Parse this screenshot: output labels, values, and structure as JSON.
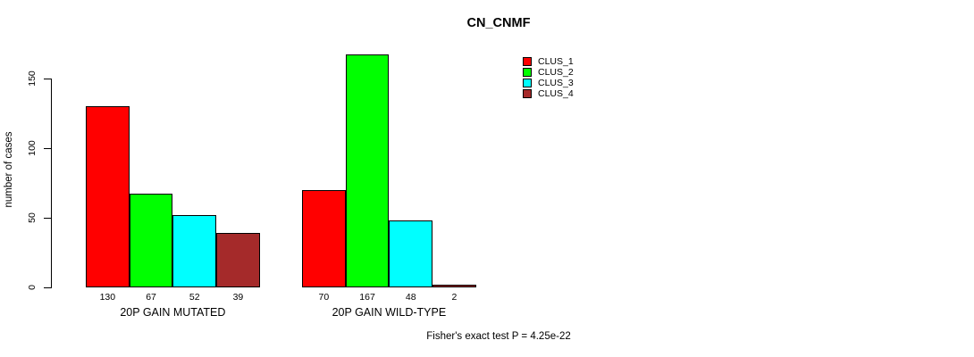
{
  "chart_data": {
    "type": "bar",
    "title": "CN_CNMF",
    "ylabel": "number of cases",
    "xlabel": "",
    "yticks": [
      0,
      50,
      100,
      150
    ],
    "ylim": [
      0,
      167
    ],
    "grid": false,
    "legend_position": "top-right",
    "series": [
      {
        "name": "CLUS_1",
        "color": "#FF0000"
      },
      {
        "name": "CLUS_2",
        "color": "#00FF00"
      },
      {
        "name": "CLUS_3",
        "color": "#00FFFF"
      },
      {
        "name": "CLUS_4",
        "color": "#A52A2A"
      }
    ],
    "categories": [
      "20P GAIN MUTATED",
      "20P GAIN WILD-TYPE"
    ],
    "groups": [
      {
        "label": "20P GAIN MUTATED",
        "values": [
          130,
          67,
          52,
          39
        ]
      },
      {
        "label": "20P GAIN WILD-TYPE",
        "values": [
          70,
          167,
          48,
          2
        ]
      }
    ],
    "bar_value_labels_shown": true,
    "annotation": "Fisher's exact test P = 4.25e-22"
  }
}
